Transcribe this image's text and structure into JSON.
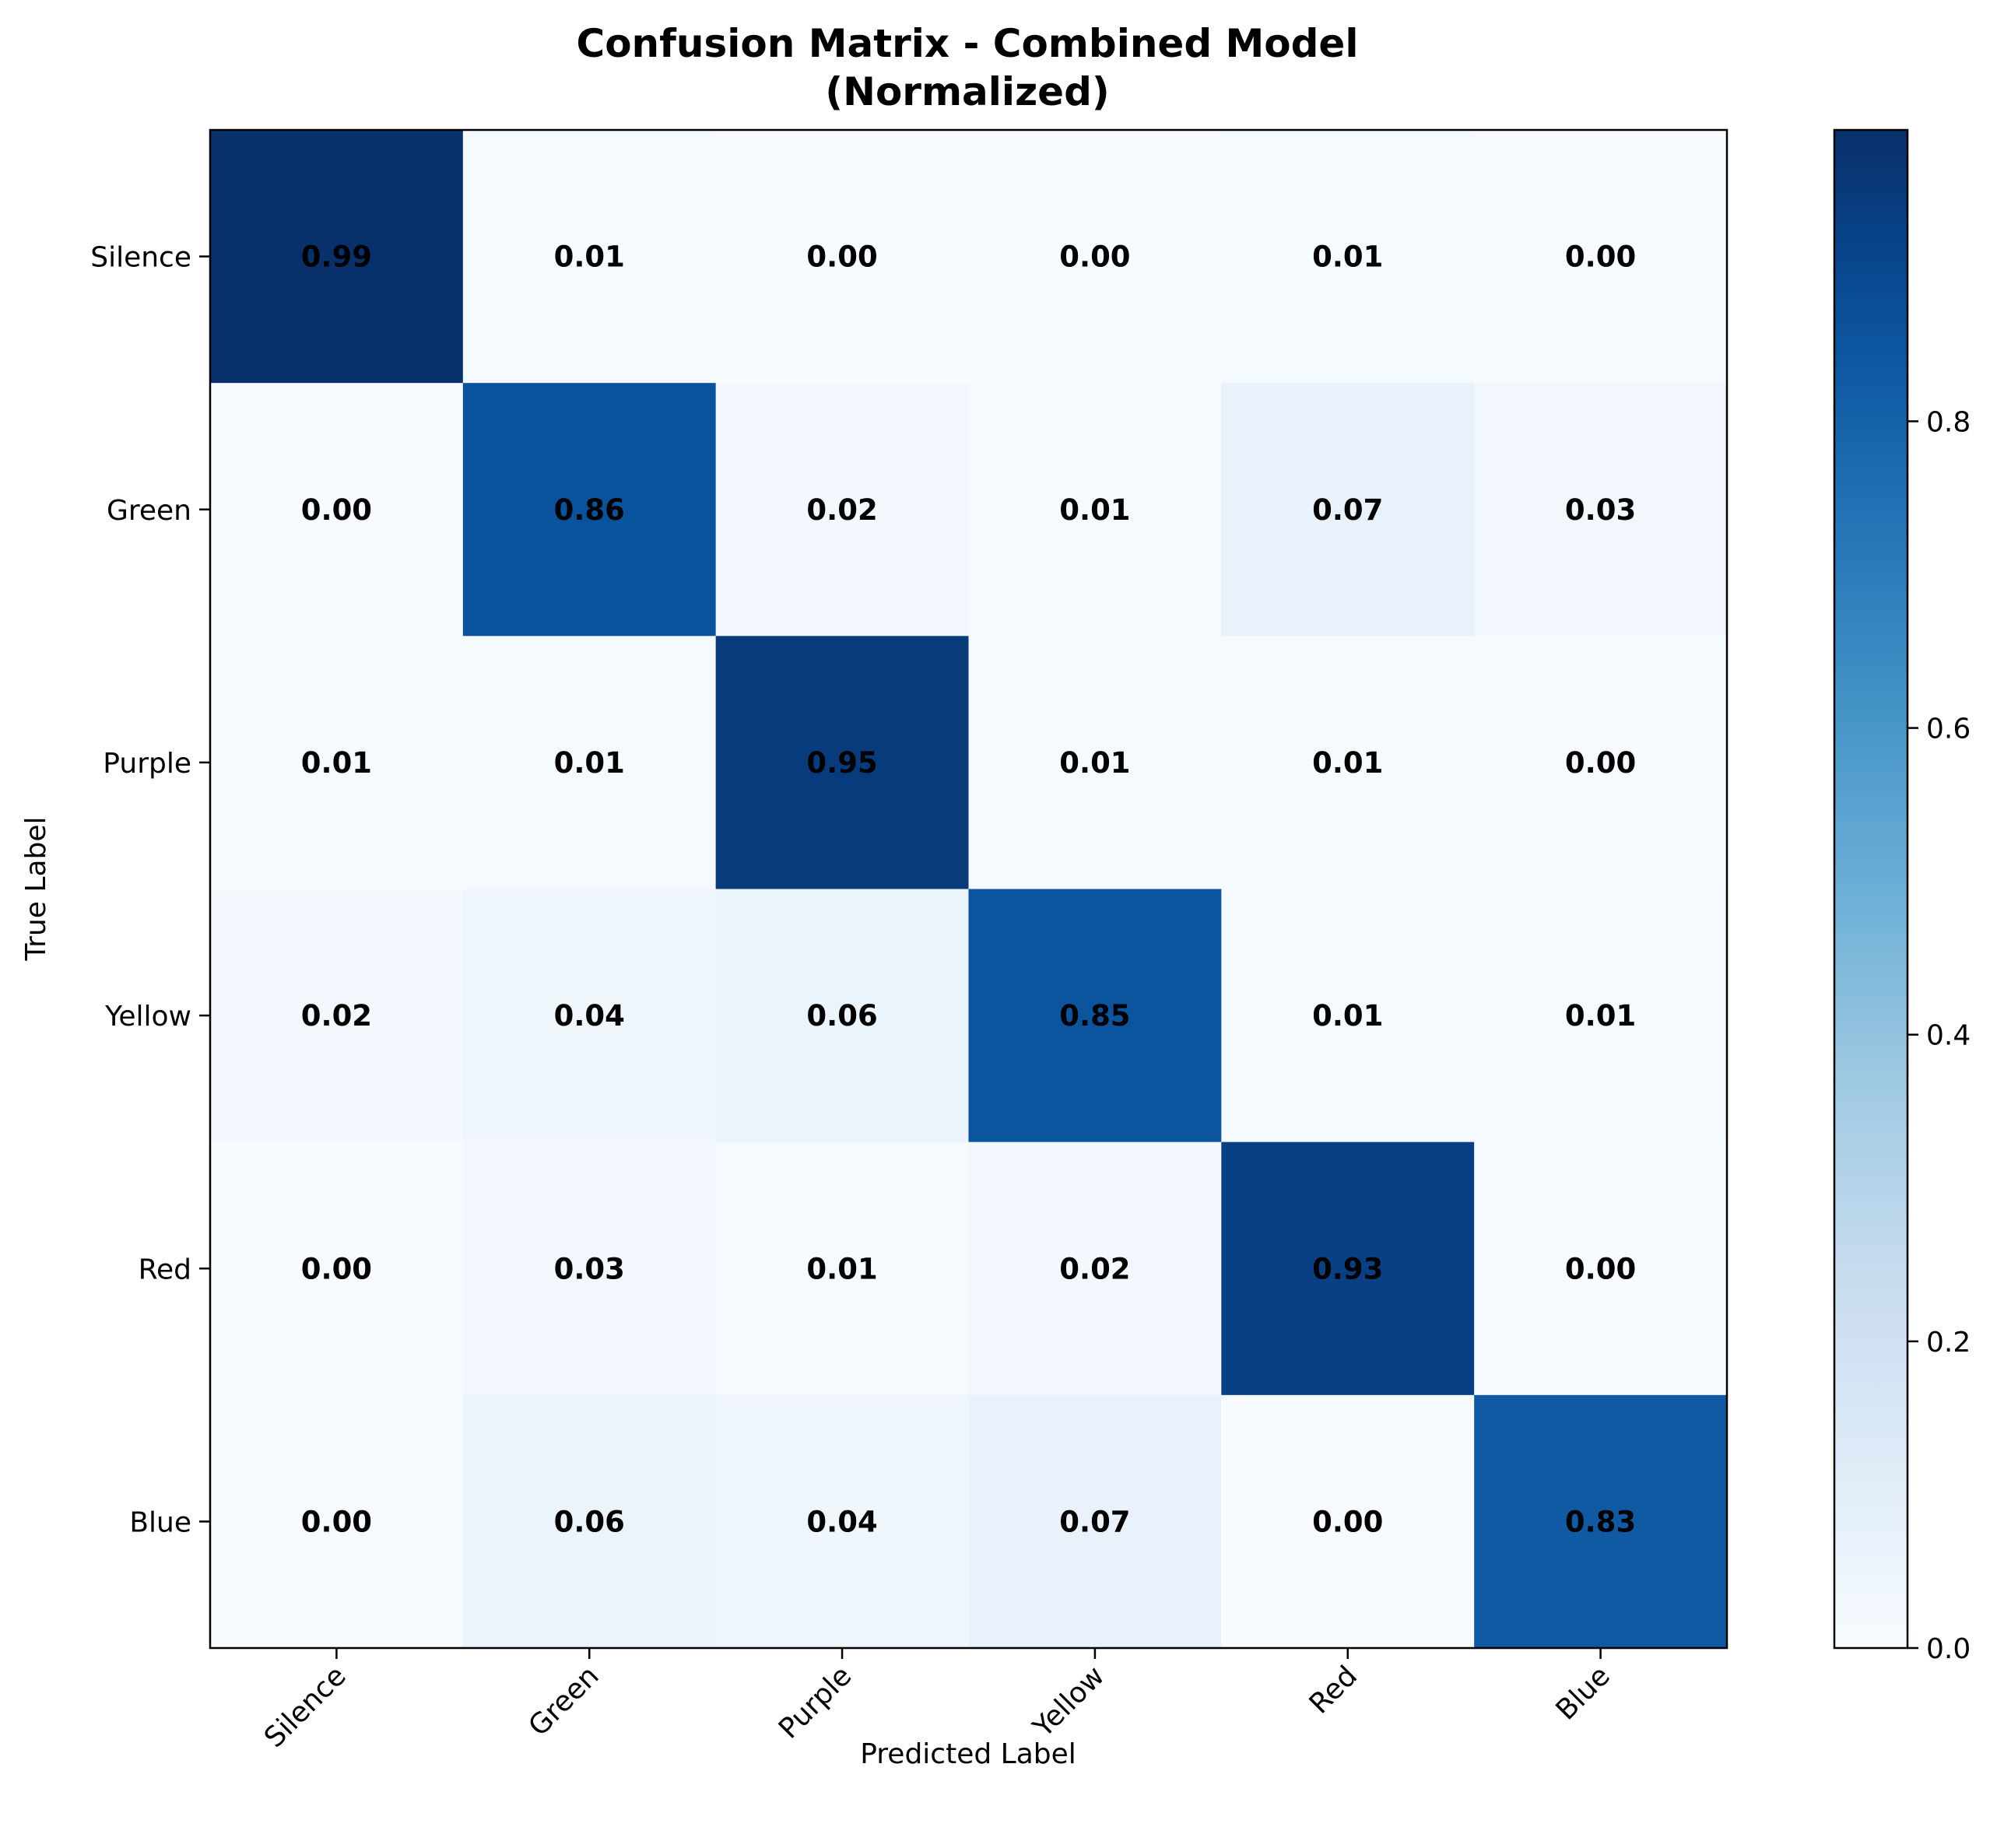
{
  "chart_data": {
    "type": "heatmap",
    "title": "Confusion Matrix - Combined Model",
    "subtitle": "(Normalized)",
    "xlabel": "Predicted Label",
    "ylabel": "True Label",
    "x_categories": [
      "Silence",
      "Green",
      "Purple",
      "Yellow",
      "Red",
      "Blue"
    ],
    "y_categories": [
      "Silence",
      "Green",
      "Purple",
      "Yellow",
      "Red",
      "Blue"
    ],
    "values": [
      [
        0.99,
        0.01,
        0.0,
        0.0,
        0.01,
        0.0
      ],
      [
        0.0,
        0.86,
        0.02,
        0.01,
        0.07,
        0.03
      ],
      [
        0.01,
        0.01,
        0.95,
        0.01,
        0.01,
        0.0
      ],
      [
        0.02,
        0.04,
        0.06,
        0.85,
        0.01,
        0.01
      ],
      [
        0.0,
        0.03,
        0.01,
        0.02,
        0.93,
        0.0
      ],
      [
        0.0,
        0.06,
        0.04,
        0.07,
        0.0,
        0.83
      ]
    ],
    "value_format": "0.00",
    "colormap": "Blues",
    "colorbar": {
      "range": [
        0,
        0.99
      ],
      "ticks": [
        0.0,
        0.2,
        0.4,
        0.6,
        0.8
      ],
      "tick_labels": [
        "0.0",
        "0.2",
        "0.4",
        "0.6",
        "0.8"
      ]
    },
    "grid": false,
    "x_tick_rotation": 45,
    "text_color": "#000000"
  }
}
